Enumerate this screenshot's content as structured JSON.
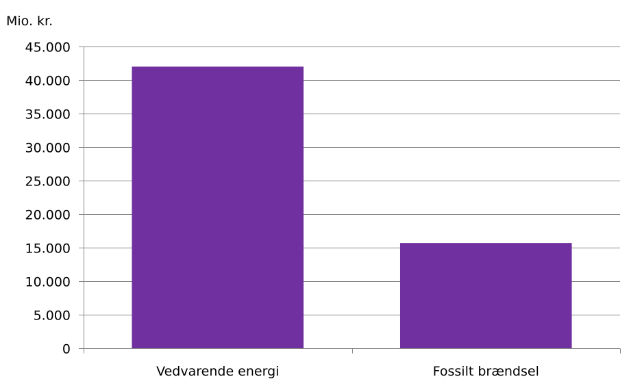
{
  "chart_data": {
    "type": "bar",
    "unit_label": "Mio. kr.",
    "categories": [
      "Vedvarende energi",
      "Fossilt brændsel"
    ],
    "series": [
      {
        "values": [
          42000,
          15700
        ]
      }
    ],
    "ylim": [
      0,
      45000
    ],
    "yticks": [
      0,
      5000,
      10000,
      15000,
      20000,
      25000,
      30000,
      35000,
      40000,
      45000
    ],
    "ytick_labels": [
      "0",
      "5.000",
      "10.000",
      "15.000",
      "20.000",
      "25.000",
      "30.000",
      "35.000",
      "40.000",
      "45.000"
    ],
    "grid": true,
    "bar_color": "#7030A0",
    "grid_color": "#868686"
  }
}
